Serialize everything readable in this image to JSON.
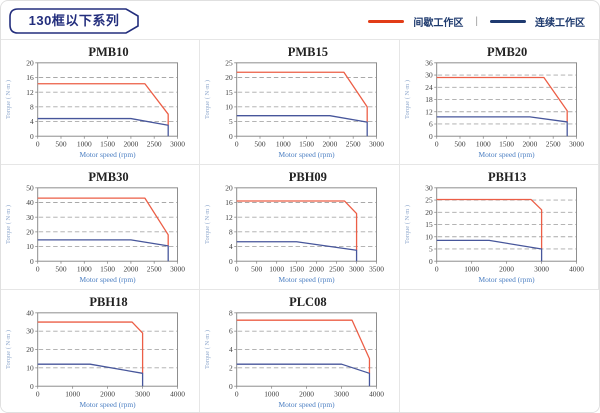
{
  "page_title": "130框以下系列",
  "legend": {
    "intermittent_label": "间歇工作区",
    "continuous_label": "连续工作区",
    "separator": "|",
    "intermittent_color": "#e23c17",
    "continuous_color": "#1f3a70"
  },
  "colors": {
    "accent_navy": "#232e7d",
    "axis": "#8c8c8c",
    "gridline": "#a9a9a9",
    "tick_text": "#3d3d3d",
    "xlabel": "#4a7ec2",
    "ylabel": "#8fa8cd",
    "curve_red": "#ec5e46",
    "curve_blue": "#47569b",
    "cell_border": "#e6e6e6"
  },
  "chart_data": [
    {
      "type": "line",
      "title": "PMB10",
      "xlabel": "Motor speed (rpm)",
      "ylabel": "Torque ( N·m )",
      "xlim": [
        0,
        3000
      ],
      "xticks": [
        0,
        500,
        1000,
        1500,
        2000,
        2500,
        3000
      ],
      "ylim": [
        0,
        20
      ],
      "yticks": [
        0,
        4,
        8,
        12,
        16,
        20
      ],
      "grid": "horizontal-dashed",
      "series": [
        {
          "name": "间歇工作区",
          "color": "#ec5e46",
          "points": [
            [
              0,
              14.3
            ],
            [
              2300,
              14.3
            ],
            [
              2800,
              6
            ],
            [
              2800,
              3
            ]
          ]
        },
        {
          "name": "连续工作区",
          "color": "#47569b",
          "points": [
            [
              0,
              4.8
            ],
            [
              2000,
              4.8
            ],
            [
              2800,
              3
            ],
            [
              2800,
              0
            ]
          ]
        }
      ]
    },
    {
      "type": "line",
      "title": "PMB15",
      "xlabel": "Motor speed (rpm)",
      "ylabel": "Torque ( N·m )",
      "xlim": [
        0,
        3000
      ],
      "xticks": [
        0,
        500,
        1000,
        1500,
        2000,
        2500,
        3000
      ],
      "ylim": [
        0,
        25
      ],
      "yticks": [
        0,
        5,
        10,
        15,
        20,
        25
      ],
      "grid": "horizontal-dashed",
      "series": [
        {
          "name": "间歇工作区",
          "color": "#ec5e46",
          "points": [
            [
              0,
              21.8
            ],
            [
              2300,
              21.8
            ],
            [
              2800,
              10
            ],
            [
              2800,
              4.8
            ]
          ]
        },
        {
          "name": "连续工作区",
          "color": "#47569b",
          "points": [
            [
              0,
              7
            ],
            [
              2000,
              7
            ],
            [
              2800,
              4.8
            ],
            [
              2800,
              0
            ]
          ]
        }
      ]
    },
    {
      "type": "line",
      "title": "PMB20",
      "xlabel": "Motor speed (rpm)",
      "ylabel": "Torque ( N·m )",
      "xlim": [
        0,
        3000
      ],
      "xticks": [
        0,
        500,
        1000,
        1500,
        2000,
        2500,
        3000
      ],
      "ylim": [
        0,
        36
      ],
      "yticks": [
        0,
        6,
        12,
        18,
        24,
        30,
        36
      ],
      "grid": "horizontal-dashed",
      "series": [
        {
          "name": "间歇工作区",
          "color": "#ec5e46",
          "points": [
            [
              0,
              28.8
            ],
            [
              2300,
              28.8
            ],
            [
              2800,
              12.5
            ],
            [
              2800,
              7
            ]
          ]
        },
        {
          "name": "连续工作区",
          "color": "#47569b",
          "points": [
            [
              0,
              9.5
            ],
            [
              2000,
              9.5
            ],
            [
              2800,
              7
            ],
            [
              2800,
              0
            ]
          ]
        }
      ]
    },
    {
      "type": "line",
      "title": "PMB30",
      "xlabel": "Motor speed (rpm)",
      "ylabel": "Torque ( N·m )",
      "xlim": [
        0,
        3000
      ],
      "xticks": [
        0,
        500,
        1000,
        1500,
        2000,
        2500,
        3000
      ],
      "ylim": [
        0,
        50
      ],
      "yticks": [
        0,
        10,
        20,
        30,
        40,
        50
      ],
      "grid": "horizontal-dashed",
      "series": [
        {
          "name": "间歇工作区",
          "color": "#ec5e46",
          "points": [
            [
              0,
              43
            ],
            [
              2300,
              43
            ],
            [
              2800,
              18
            ],
            [
              2800,
              10.5
            ]
          ]
        },
        {
          "name": "连续工作区",
          "color": "#47569b",
          "points": [
            [
              0,
              14.5
            ],
            [
              2000,
              14.5
            ],
            [
              2800,
              10.5
            ],
            [
              2800,
              0
            ]
          ]
        }
      ]
    },
    {
      "type": "line",
      "title": "PBH09",
      "xlabel": "Motor speed (rpm)",
      "ylabel": "Torque ( N·m )",
      "xlim": [
        0,
        3500
      ],
      "xticks": [
        0,
        500,
        1000,
        1500,
        2000,
        2500,
        3000,
        3500
      ],
      "ylim": [
        0,
        20
      ],
      "yticks": [
        0,
        4,
        8,
        12,
        16,
        20
      ],
      "grid": "horizontal-dashed",
      "series": [
        {
          "name": "间歇工作区",
          "color": "#ec5e46",
          "points": [
            [
              0,
              16.4
            ],
            [
              2700,
              16.4
            ],
            [
              3000,
              13
            ],
            [
              3000,
              3
            ]
          ]
        },
        {
          "name": "连续工作区",
          "color": "#47569b",
          "points": [
            [
              0,
              5.3
            ],
            [
              1500,
              5.3
            ],
            [
              3000,
              3
            ],
            [
              3000,
              0
            ]
          ]
        }
      ]
    },
    {
      "type": "line",
      "title": "PBH13",
      "xlabel": "Motor speed (rpm)",
      "ylabel": "Torque ( N·m )",
      "xlim": [
        0,
        4000
      ],
      "xticks": [
        0,
        1000,
        2000,
        3000,
        4000
      ],
      "ylim": [
        0,
        30
      ],
      "yticks": [
        0,
        5,
        10,
        15,
        20,
        25,
        30
      ],
      "grid": "horizontal-dashed",
      "series": [
        {
          "name": "间歇工作区",
          "color": "#ec5e46",
          "points": [
            [
              0,
              25.2
            ],
            [
              2700,
              25.2
            ],
            [
              3000,
              21
            ],
            [
              3000,
              5
            ]
          ]
        },
        {
          "name": "连续工作区",
          "color": "#47569b",
          "points": [
            [
              0,
              8.5
            ],
            [
              1500,
              8.5
            ],
            [
              3000,
              5
            ],
            [
              3000,
              0
            ]
          ]
        }
      ]
    },
    {
      "type": "line",
      "title": "PBH18",
      "xlabel": "Motor speed (rpm)",
      "ylabel": "Torque ( N·m )",
      "xlim": [
        0,
        4000
      ],
      "xticks": [
        0,
        1000,
        2000,
        3000,
        4000
      ],
      "ylim": [
        0,
        40
      ],
      "yticks": [
        0,
        10,
        20,
        30,
        40
      ],
      "grid": "horizontal-dashed",
      "series": [
        {
          "name": "间歇工作区",
          "color": "#ec5e46",
          "points": [
            [
              0,
              35
            ],
            [
              2700,
              35
            ],
            [
              3000,
              29
            ],
            [
              3000,
              7
            ]
          ]
        },
        {
          "name": "连续工作区",
          "color": "#47569b",
          "points": [
            [
              0,
              12
            ],
            [
              1500,
              12
            ],
            [
              3000,
              7
            ],
            [
              3000,
              0
            ]
          ]
        }
      ]
    },
    {
      "type": "line",
      "title": "PLC08",
      "xlabel": "Motor speed (rpm)",
      "ylabel": "Torque ( N·m )",
      "xlim": [
        0,
        4000
      ],
      "xticks": [
        0,
        1000,
        2000,
        3000,
        4000
      ],
      "ylim": [
        0,
        8
      ],
      "yticks": [
        0,
        2,
        4,
        6,
        8
      ],
      "grid": "horizontal-dashed",
      "series": [
        {
          "name": "间歇工作区",
          "color": "#ec5e46",
          "points": [
            [
              0,
              7.2
            ],
            [
              3300,
              7.2
            ],
            [
              3800,
              3
            ],
            [
              3800,
              1.4
            ]
          ]
        },
        {
          "name": "连续工作区",
          "color": "#47569b",
          "points": [
            [
              0,
              2.4
            ],
            [
              3000,
              2.4
            ],
            [
              3800,
              1.4
            ],
            [
              3800,
              0
            ]
          ]
        }
      ]
    }
  ]
}
